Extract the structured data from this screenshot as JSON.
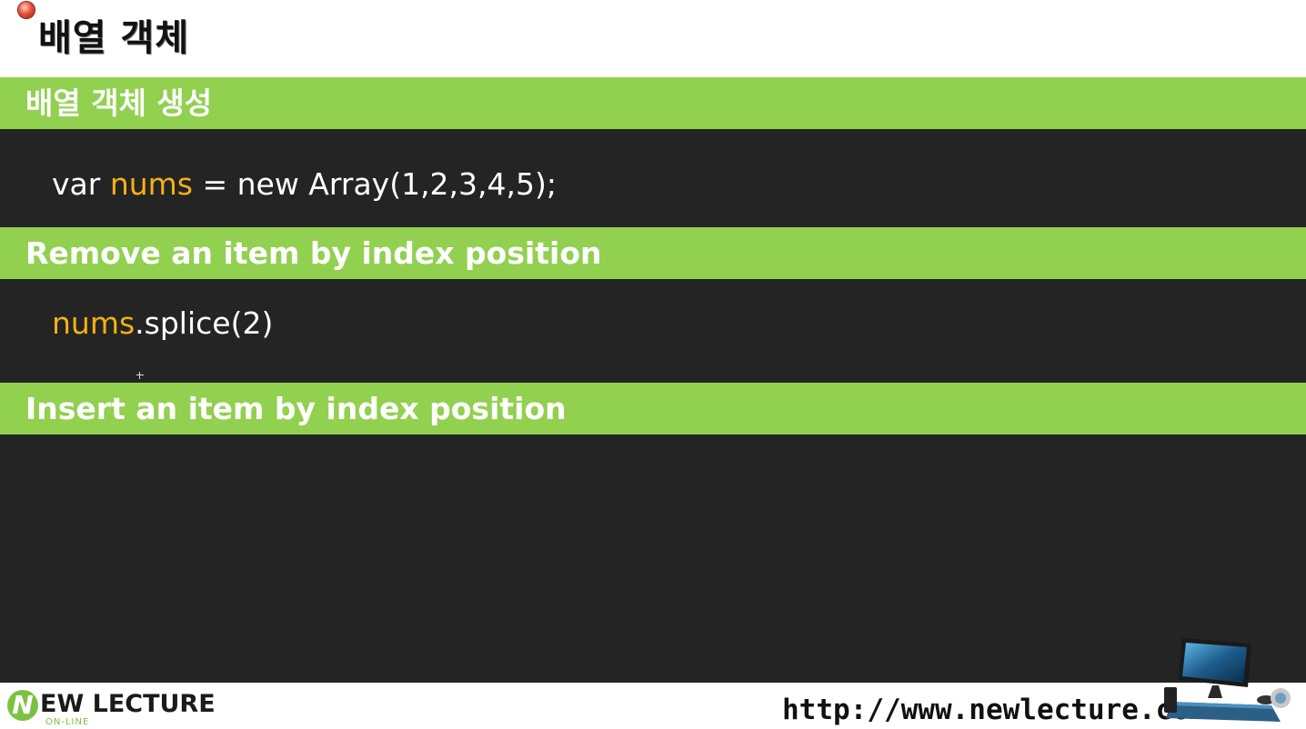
{
  "slide": {
    "title": "배열 객체",
    "sections": [
      {
        "header": "배열 객체 생성",
        "code": [
          {
            "text": "var ",
            "highlight": false
          },
          {
            "text": "nums",
            "highlight": true
          },
          {
            "text": " = new Array(1,2,3,4,5);",
            "highlight": false
          }
        ]
      },
      {
        "header": "Remove an item by index position",
        "code": [
          {
            "text": "nums",
            "highlight": true
          },
          {
            "text": ".splice(2)",
            "highlight": false
          }
        ]
      },
      {
        "header": "Insert an item by index position"
      }
    ]
  },
  "footer": {
    "logo_mark": "N",
    "logo_text": "EW LECTURE",
    "logo_sub": "ON-LINE",
    "url": "http://www.newlecture.com"
  },
  "colors": {
    "accent_green": "#92d050",
    "panel_dark": "#242424",
    "highlight_orange": "#f5b016"
  },
  "icons": {
    "bullet": "red-circle-bullet-icon",
    "computer": "computer-desk-icon"
  }
}
